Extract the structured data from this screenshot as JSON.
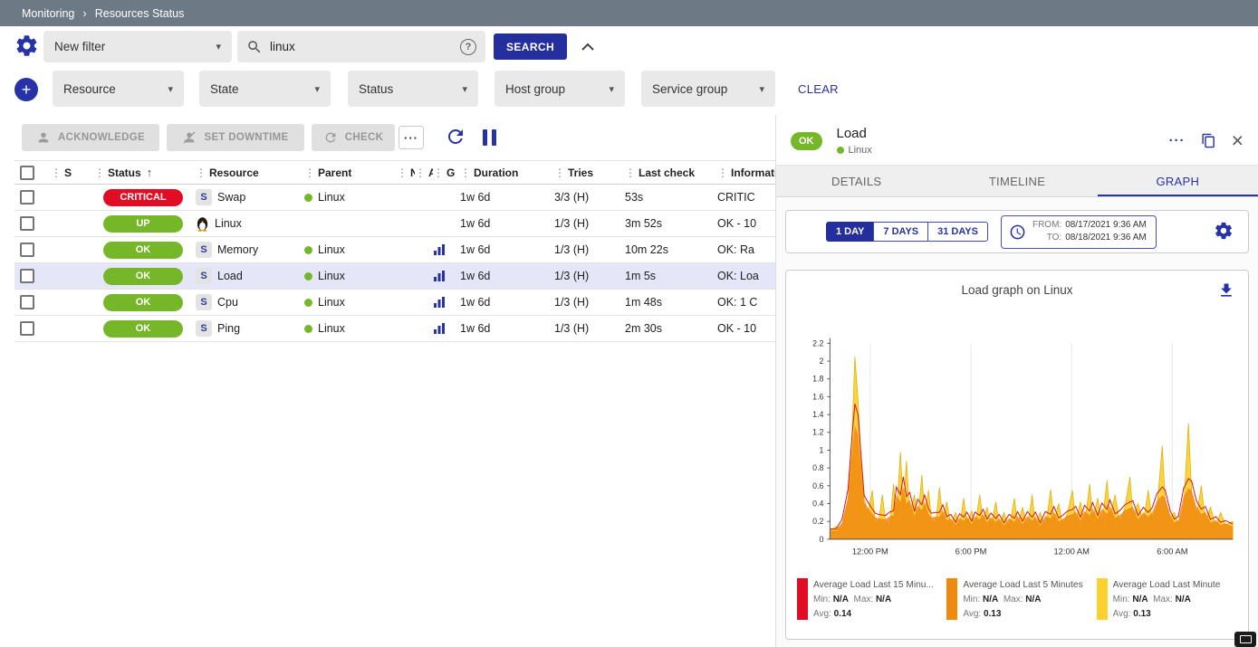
{
  "colors": {
    "accent": "#2732a6",
    "accent_dark": "#242e9c",
    "ok_green": "#76b72a",
    "critical_red": "#e10d24",
    "selected_row": "#e5e6f8",
    "topbar_bg": "#6d7984"
  },
  "icons": {
    "caret_down": "▾",
    "drag_handle": "⋮",
    "sort_asc": "↑",
    "plus": "+",
    "close": "×",
    "more": "···",
    "help": "?",
    "breadcrumb_sep": "›"
  },
  "breadcrumb": {
    "items": [
      {
        "label": "Monitoring"
      },
      {
        "label": "Resources Status"
      }
    ]
  },
  "filters": {
    "saved_filter": {
      "value": "New filter"
    },
    "search": {
      "value": "linux"
    },
    "search_button": "SEARCH",
    "criteria": [
      {
        "label": "Resource"
      },
      {
        "label": "State"
      },
      {
        "label": "Status"
      },
      {
        "label": "Host group"
      },
      {
        "label": "Service group"
      }
    ]
  },
  "toolbar": {
    "acknowledge": "ACKNOWLEDGE",
    "set_downtime": "SET DOWNTIME",
    "check": "CHECK"
  },
  "table": {
    "headers": {
      "severity": "S",
      "status": "Status",
      "resource": "Resource",
      "parent": "Parent",
      "n": "N",
      "a": "A",
      "g": "G",
      "duration": "Duration",
      "tries": "Tries",
      "last_check": "Last check",
      "information": "Information"
    },
    "rows": [
      {
        "status": "CRITICAL",
        "resource_icon": "S",
        "resource": "Swap",
        "parent": "Linux",
        "duration": "1w 6d",
        "tries": "3/3 (H)",
        "last_check": "53s",
        "information": "CRITIC",
        "selected": false
      },
      {
        "status": "UP",
        "resource_icon": "penguin",
        "resource": "Linux",
        "parent": "",
        "duration": "1w 6d",
        "tries": "1/3 (H)",
        "last_check": "3m 52s",
        "information": "OK - 10",
        "selected": false
      },
      {
        "status": "OK",
        "resource_icon": "S",
        "resource": "Memory",
        "parent": "Linux",
        "duration": "1w 6d",
        "tries": "1/3 (H)",
        "last_check": "10m 22s",
        "information": "OK: Ra",
        "selected": false
      },
      {
        "status": "OK",
        "resource_icon": "S",
        "resource": "Load",
        "parent": "Linux",
        "duration": "1w 6d",
        "tries": "1/3 (H)",
        "last_check": "1m 5s",
        "information": "OK: Loa",
        "selected": true
      },
      {
        "status": "OK",
        "resource_icon": "S",
        "resource": "Cpu",
        "parent": "Linux",
        "duration": "1w 6d",
        "tries": "1/3 (H)",
        "last_check": "1m 48s",
        "information": "OK: 1 C",
        "selected": false
      },
      {
        "status": "OK",
        "resource_icon": "S",
        "resource": "Ping",
        "parent": "Linux",
        "duration": "1w 6d",
        "tries": "1/3 (H)",
        "last_check": "2m 30s",
        "information": "OK - 10",
        "selected": false
      }
    ]
  },
  "panel": {
    "clear_label": "CLEAR",
    "status_chip": "OK",
    "title": "Load",
    "subtitle": "Linux",
    "tabs": [
      {
        "label": "DETAILS"
      },
      {
        "label": "TIMELINE"
      },
      {
        "label": "GRAPH"
      }
    ],
    "active_tab": "GRAPH",
    "periods": [
      {
        "label": "1 DAY"
      },
      {
        "label": "7 DAYS"
      },
      {
        "label": "31 DAYS"
      }
    ],
    "active_period": "1 DAY",
    "time_range": {
      "from_label": "FROM:",
      "from_value": "08/17/2021 9:36 AM",
      "to_label": "TO:",
      "to_value": "08/18/2021 9:36 AM"
    },
    "graph_title": "Load graph on Linux",
    "legend_labels": {
      "min": "Min:",
      "max": "Max:",
      "avg": "Avg:"
    },
    "legend": [
      {
        "name": "Average Load Last 15 Minu...",
        "color": "#e10d24",
        "min": "N/A",
        "max": "N/A",
        "avg": "0.14"
      },
      {
        "name": "Average Load Last 5 Minutes",
        "color": "#f0890f",
        "min": "N/A",
        "max": "N/A",
        "avg": "0.13"
      },
      {
        "name": "Average Load Last Minute",
        "color": "#fcd12e",
        "min": "N/A",
        "max": "N/A",
        "avg": "0.13"
      }
    ]
  },
  "chart_data": {
    "type": "area",
    "title": "Load graph on Linux",
    "ylim": [
      0,
      2.2
    ],
    "ytick_step": 0.2,
    "grid": "vertical-only",
    "legend_position": "bottom",
    "xticks": [
      {
        "pos": 0.1,
        "label": "12:00 PM"
      },
      {
        "pos": 0.35,
        "label": "6:00 PM"
      },
      {
        "pos": 0.6,
        "label": "12:00 AM"
      },
      {
        "pos": 0.85,
        "label": "6:00 AM"
      }
    ],
    "series": [
      {
        "name": "Average Load Last 15 Minu...",
        "color": "#e10d24",
        "style": "line",
        "avg": 0.14
      },
      {
        "name": "Average Load Last 5 Minutes",
        "color": "#f0890f",
        "style": "area",
        "avg": 0.13
      },
      {
        "name": "Average Load Last Minute",
        "color": "#fcd12e",
        "style": "area",
        "avg": 0.13
      }
    ],
    "points": [
      [
        0,
        0.1
      ],
      [
        0.015,
        0.14
      ],
      [
        0.03,
        0.12
      ],
      [
        0.045,
        0.45
      ],
      [
        0.055,
        1.2
      ],
      [
        0.062,
        2.05
      ],
      [
        0.07,
        1.55
      ],
      [
        0.078,
        0.8
      ],
      [
        0.085,
        0.45
      ],
      [
        0.095,
        0.3
      ],
      [
        0.105,
        0.55
      ],
      [
        0.112,
        0.22
      ],
      [
        0.12,
        0.16
      ],
      [
        0.13,
        0.5
      ],
      [
        0.138,
        0.2
      ],
      [
        0.148,
        0.14
      ],
      [
        0.158,
        0.62
      ],
      [
        0.165,
        0.25
      ],
      [
        0.175,
        0.98
      ],
      [
        0.182,
        0.35
      ],
      [
        0.19,
        0.88
      ],
      [
        0.198,
        0.28
      ],
      [
        0.21,
        0.5
      ],
      [
        0.218,
        0.2
      ],
      [
        0.228,
        0.72
      ],
      [
        0.235,
        0.3
      ],
      [
        0.245,
        0.55
      ],
      [
        0.252,
        0.22
      ],
      [
        0.262,
        0.15
      ],
      [
        0.272,
        0.58
      ],
      [
        0.28,
        0.22
      ],
      [
        0.29,
        0.42
      ],
      [
        0.3,
        0.16
      ],
      [
        0.312,
        0.3
      ],
      [
        0.322,
        0.14
      ],
      [
        0.332,
        0.46
      ],
      [
        0.34,
        0.18
      ],
      [
        0.352,
        0.32
      ],
      [
        0.36,
        0.14
      ],
      [
        0.372,
        0.5
      ],
      [
        0.38,
        0.2
      ],
      [
        0.39,
        0.36
      ],
      [
        0.4,
        0.15
      ],
      [
        0.412,
        0.42
      ],
      [
        0.42,
        0.16
      ],
      [
        0.432,
        0.3
      ],
      [
        0.445,
        0.12
      ],
      [
        0.458,
        0.46
      ],
      [
        0.466,
        0.16
      ],
      [
        0.478,
        0.36
      ],
      [
        0.49,
        0.12
      ],
      [
        0.502,
        0.5
      ],
      [
        0.51,
        0.16
      ],
      [
        0.522,
        0.3
      ],
      [
        0.535,
        0.12
      ],
      [
        0.548,
        0.56
      ],
      [
        0.556,
        0.2
      ],
      [
        0.568,
        0.4
      ],
      [
        0.578,
        0.15
      ],
      [
        0.59,
        0.3
      ],
      [
        0.602,
        0.55
      ],
      [
        0.61,
        0.2
      ],
      [
        0.622,
        0.42
      ],
      [
        0.632,
        0.16
      ],
      [
        0.645,
        0.62
      ],
      [
        0.652,
        0.22
      ],
      [
        0.665,
        0.46
      ],
      [
        0.675,
        0.16
      ],
      [
        0.688,
        0.66
      ],
      [
        0.695,
        0.24
      ],
      [
        0.708,
        0.5
      ],
      [
        0.72,
        0.16
      ],
      [
        0.732,
        0.36
      ],
      [
        0.745,
        0.7
      ],
      [
        0.752,
        0.26
      ],
      [
        0.765,
        0.4
      ],
      [
        0.778,
        0.18
      ],
      [
        0.79,
        0.55
      ],
      [
        0.8,
        0.22
      ],
      [
        0.812,
        0.35
      ],
      [
        0.825,
        1.05
      ],
      [
        0.832,
        0.45
      ],
      [
        0.845,
        0.25
      ],
      [
        0.855,
        0.3
      ],
      [
        0.865,
        0.16
      ],
      [
        0.878,
        0.35
      ],
      [
        0.89,
        1.3
      ],
      [
        0.898,
        0.5
      ],
      [
        0.91,
        0.26
      ],
      [
        0.922,
        0.6
      ],
      [
        0.932,
        0.2
      ],
      [
        0.945,
        0.36
      ],
      [
        0.958,
        0.14
      ],
      [
        0.97,
        0.3
      ],
      [
        0.982,
        0.16
      ],
      [
        1,
        0.2
      ]
    ]
  }
}
